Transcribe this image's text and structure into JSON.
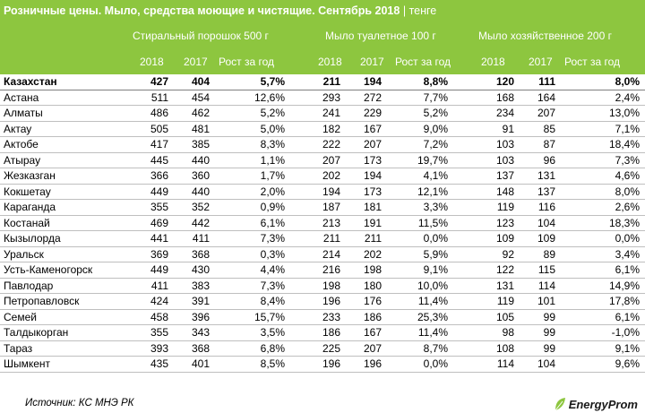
{
  "title": {
    "text": "Розничные цены. Мыло, средства моющие и чистящие. Сентябрь 2018",
    "separator": "|",
    "unit": "тенге"
  },
  "groups": [
    "Стиральный порошок 500 г",
    "Мыло туалетное 100 г",
    "Мыло хозяйственное 200 г"
  ],
  "subheaders": [
    "2018",
    "2017",
    "Рост за год"
  ],
  "rows": [
    {
      "city": "Казахстан",
      "v": [
        "427",
        "404",
        "5,7%",
        "211",
        "194",
        "8,8%",
        "120",
        "111",
        "8,0%"
      ]
    },
    {
      "city": "Астана",
      "v": [
        "511",
        "454",
        "12,6%",
        "293",
        "272",
        "7,7%",
        "168",
        "164",
        "2,4%"
      ]
    },
    {
      "city": "Алматы",
      "v": [
        "486",
        "462",
        "5,2%",
        "241",
        "229",
        "5,2%",
        "234",
        "207",
        "13,0%"
      ]
    },
    {
      "city": "Актау",
      "v": [
        "505",
        "481",
        "5,0%",
        "182",
        "167",
        "9,0%",
        "91",
        "85",
        "7,1%"
      ]
    },
    {
      "city": "Актобе",
      "v": [
        "417",
        "385",
        "8,3%",
        "222",
        "207",
        "7,2%",
        "103",
        "87",
        "18,4%"
      ]
    },
    {
      "city": "Атырау",
      "v": [
        "445",
        "440",
        "1,1%",
        "207",
        "173",
        "19,7%",
        "103",
        "96",
        "7,3%"
      ]
    },
    {
      "city": "Жезказган",
      "v": [
        "366",
        "360",
        "1,7%",
        "202",
        "194",
        "4,1%",
        "137",
        "131",
        "4,6%"
      ]
    },
    {
      "city": "Кокшетау",
      "v": [
        "449",
        "440",
        "2,0%",
        "194",
        "173",
        "12,1%",
        "148",
        "137",
        "8,0%"
      ]
    },
    {
      "city": "Караганда",
      "v": [
        "355",
        "352",
        "0,9%",
        "187",
        "181",
        "3,3%",
        "119",
        "116",
        "2,6%"
      ]
    },
    {
      "city": "Костанай",
      "v": [
        "469",
        "442",
        "6,1%",
        "213",
        "191",
        "11,5%",
        "123",
        "104",
        "18,3%"
      ]
    },
    {
      "city": "Кызылорда",
      "v": [
        "441",
        "411",
        "7,3%",
        "211",
        "211",
        "0,0%",
        "109",
        "109",
        "0,0%"
      ]
    },
    {
      "city": "Уральск",
      "v": [
        "369",
        "368",
        "0,3%",
        "214",
        "202",
        "5,9%",
        "92",
        "89",
        "3,4%"
      ]
    },
    {
      "city": "Усть-Каменогорск",
      "v": [
        "449",
        "430",
        "4,4%",
        "216",
        "198",
        "9,1%",
        "122",
        "115",
        "6,1%"
      ]
    },
    {
      "city": "Павлодар",
      "v": [
        "411",
        "383",
        "7,3%",
        "198",
        "180",
        "10,0%",
        "131",
        "114",
        "14,9%"
      ]
    },
    {
      "city": "Петропавловск",
      "v": [
        "424",
        "391",
        "8,4%",
        "196",
        "176",
        "11,4%",
        "119",
        "101",
        "17,8%"
      ]
    },
    {
      "city": "Семей",
      "v": [
        "458",
        "396",
        "15,7%",
        "233",
        "186",
        "25,3%",
        "105",
        "99",
        "6,1%"
      ]
    },
    {
      "city": "Талдыкорган",
      "v": [
        "355",
        "343",
        "3,5%",
        "186",
        "167",
        "11,4%",
        "98",
        "99",
        "-1,0%"
      ]
    },
    {
      "city": "Тараз",
      "v": [
        "393",
        "368",
        "6,8%",
        "225",
        "207",
        "8,7%",
        "108",
        "99",
        "9,1%"
      ]
    },
    {
      "city": "Шымкент",
      "v": [
        "435",
        "401",
        "8,5%",
        "196",
        "196",
        "0,0%",
        "114",
        "104",
        "9,6%"
      ]
    }
  ],
  "source": "Источник: КС МНЭ РК",
  "logo": {
    "text": "EnergyProm",
    "icon": "energyprom-leaf-icon",
    "color": "#8dc63f"
  }
}
